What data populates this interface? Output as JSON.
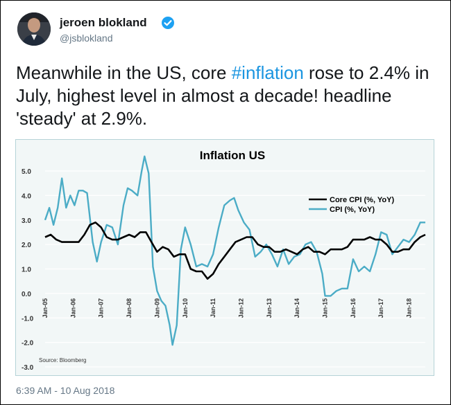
{
  "tweet": {
    "display_name": "jeroen blokland",
    "handle": "@jsblokland",
    "text_before": "Meanwhile in the US, core ",
    "hashtag": "#inflation",
    "text_after": " rose to 2.4% in July, highest level in almost a decade! headline 'steady' at 2.9%.",
    "timestamp": "6:39 AM - 10 Aug 2018",
    "icons": {
      "avatar": "profile-photo",
      "verified": "verified-badge-icon"
    },
    "colors": {
      "hashtag": "#1b95e0",
      "verified": "#1da1f2",
      "muted": "#657786"
    }
  },
  "chart_data": {
    "type": "line",
    "title": "Inflation US",
    "xlabel": "",
    "ylabel": "",
    "ylim": [
      -3.0,
      5.0
    ],
    "yticks": [
      5.0,
      4.0,
      3.0,
      2.0,
      1.0,
      0.0,
      -1.0,
      -2.0,
      -3.0
    ],
    "ytick_labels": [
      "5.0",
      "4.0",
      "3.0",
      "2.0",
      "1.0",
      "0.0",
      "-1.0",
      "-2.0",
      "-3.0"
    ],
    "xtick_labels": [
      "Jan-05",
      "Jan-06",
      "Jan-07",
      "Jan-08",
      "Jan-09",
      "Jan-10",
      "Jan-11",
      "Jan-12",
      "Jan-13",
      "Jan-14",
      "Jan-15",
      "Jan-16",
      "Jan-17",
      "Jan-18"
    ],
    "xrange": [
      2005.0,
      2018.58
    ],
    "source": "Source: Bloomberg",
    "legend_position": "right",
    "series": [
      {
        "name": "Core CPI (%, YoY)",
        "color": "#000000",
        "x": [
          2005.0,
          2005.2,
          2005.4,
          2005.6,
          2005.8,
          2006.0,
          2006.2,
          2006.4,
          2006.6,
          2006.8,
          2007.0,
          2007.2,
          2007.4,
          2007.6,
          2007.8,
          2008.0,
          2008.2,
          2008.4,
          2008.6,
          2008.8,
          2009.0,
          2009.2,
          2009.4,
          2009.6,
          2009.8,
          2010.0,
          2010.2,
          2010.4,
          2010.6,
          2010.8,
          2011.0,
          2011.2,
          2011.4,
          2011.6,
          2011.8,
          2012.0,
          2012.2,
          2012.4,
          2012.6,
          2012.8,
          2013.0,
          2013.2,
          2013.4,
          2013.6,
          2013.8,
          2014.0,
          2014.2,
          2014.4,
          2014.6,
          2014.8,
          2015.0,
          2015.2,
          2015.4,
          2015.6,
          2015.8,
          2016.0,
          2016.2,
          2016.4,
          2016.6,
          2016.8,
          2017.0,
          2017.2,
          2017.4,
          2017.6,
          2017.8,
          2018.0,
          2018.2,
          2018.4,
          2018.58
        ],
        "values": [
          2.3,
          2.4,
          2.2,
          2.1,
          2.1,
          2.1,
          2.1,
          2.4,
          2.8,
          2.9,
          2.7,
          2.3,
          2.2,
          2.2,
          2.3,
          2.4,
          2.3,
          2.5,
          2.5,
          2.1,
          1.7,
          1.9,
          1.8,
          1.5,
          1.6,
          1.6,
          1.0,
          0.9,
          0.9,
          0.6,
          0.8,
          1.2,
          1.5,
          1.8,
          2.1,
          2.2,
          2.3,
          2.3,
          2.0,
          1.9,
          1.9,
          1.7,
          1.7,
          1.8,
          1.7,
          1.6,
          1.8,
          1.9,
          1.7,
          1.7,
          1.6,
          1.8,
          1.8,
          1.8,
          1.9,
          2.2,
          2.2,
          2.2,
          2.3,
          2.2,
          2.2,
          2.0,
          1.7,
          1.7,
          1.8,
          1.8,
          2.1,
          2.3,
          2.4
        ]
      },
      {
        "name": "CPI (%, YoY)",
        "color": "#4bacc6",
        "x": [
          2005.0,
          2005.15,
          2005.3,
          2005.45,
          2005.6,
          2005.75,
          2005.9,
          2006.05,
          2006.2,
          2006.35,
          2006.5,
          2006.7,
          2006.85,
          2007.0,
          2007.2,
          2007.4,
          2007.6,
          2007.8,
          2007.95,
          2008.1,
          2008.3,
          2008.45,
          2008.55,
          2008.7,
          2008.85,
          2009.0,
          2009.15,
          2009.3,
          2009.45,
          2009.55,
          2009.7,
          2009.85,
          2010.0,
          2010.2,
          2010.4,
          2010.6,
          2010.8,
          2011.0,
          2011.2,
          2011.4,
          2011.6,
          2011.75,
          2011.9,
          2012.1,
          2012.3,
          2012.5,
          2012.7,
          2012.9,
          2013.1,
          2013.3,
          2013.5,
          2013.7,
          2013.9,
          2014.1,
          2014.3,
          2014.5,
          2014.7,
          2014.9,
          2015.0,
          2015.2,
          2015.4,
          2015.6,
          2015.8,
          2016.0,
          2016.2,
          2016.4,
          2016.6,
          2016.8,
          2017.0,
          2017.2,
          2017.4,
          2017.6,
          2017.8,
          2018.0,
          2018.2,
          2018.4,
          2018.58
        ],
        "values": [
          3.0,
          3.5,
          2.8,
          3.5,
          4.7,
          3.5,
          4.0,
          3.6,
          4.2,
          4.2,
          4.1,
          2.1,
          1.3,
          2.1,
          2.8,
          2.7,
          2.0,
          3.6,
          4.3,
          4.2,
          4.0,
          5.0,
          5.6,
          4.9,
          1.1,
          0.1,
          -0.3,
          -0.5,
          -1.3,
          -2.1,
          -1.3,
          1.8,
          2.7,
          2.0,
          1.1,
          1.2,
          1.1,
          1.6,
          2.7,
          3.6,
          3.8,
          3.9,
          3.4,
          2.9,
          2.6,
          1.5,
          1.7,
          2.0,
          1.6,
          1.1,
          1.8,
          1.2,
          1.5,
          1.6,
          2.0,
          2.1,
          1.7,
          0.8,
          -0.1,
          -0.1,
          0.1,
          0.2,
          0.2,
          1.4,
          0.9,
          1.1,
          0.9,
          1.6,
          2.5,
          2.4,
          1.6,
          1.9,
          2.2,
          2.1,
          2.4,
          2.9,
          2.9
        ]
      }
    ]
  }
}
